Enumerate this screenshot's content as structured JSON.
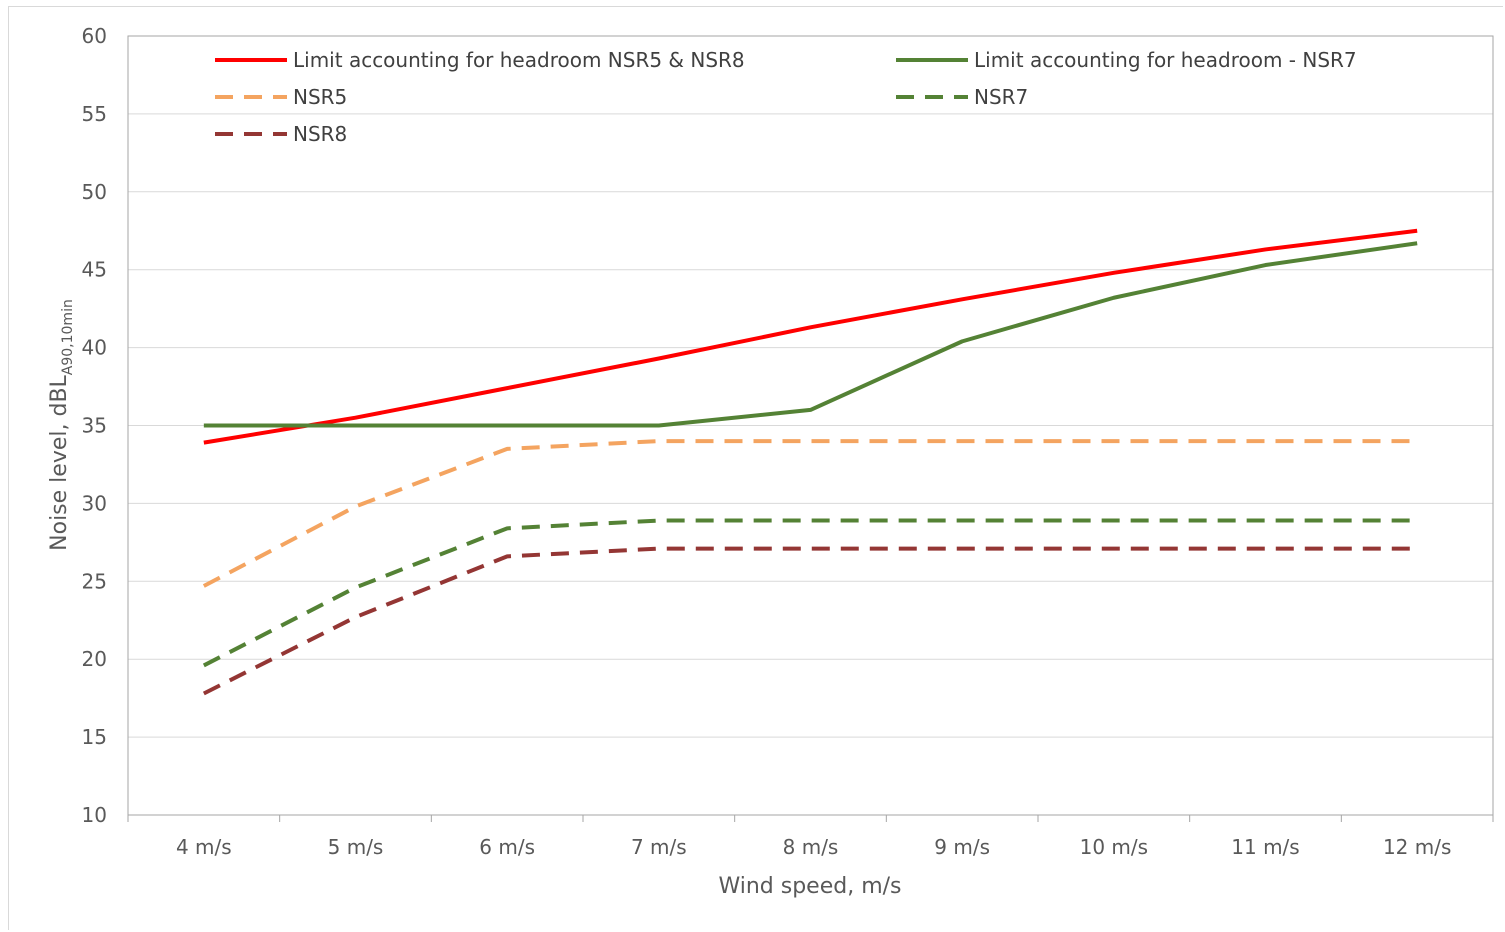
{
  "chart_data": {
    "type": "line",
    "title": "",
    "xlabel": "Wind speed, m/s",
    "ylabel": "Noise level, dBL",
    "ylabel_subscript": "A90,10min",
    "categories": [
      "4 m/s",
      "5 m/s",
      "6 m/s",
      "7 m/s",
      "8 m/s",
      "9 m/s",
      "10 m/s",
      "11 m/s",
      "12 m/s"
    ],
    "ylim": [
      10,
      60
    ],
    "yticks": [
      "10",
      "15",
      "20",
      "25",
      "30",
      "35",
      "40",
      "45",
      "50",
      "55",
      "60"
    ],
    "grid": true,
    "legend_position": "top",
    "series": [
      {
        "name": "Limit accounting for headroom NSR5 & NSR8",
        "color": "#ff0000",
        "dash": "solid",
        "values": [
          33.9,
          35.5,
          37.4,
          39.3,
          41.3,
          43.1,
          44.8,
          46.3,
          47.5
        ]
      },
      {
        "name": "Limit accounting for headroom - NSR7",
        "color": "#548235",
        "dash": "solid",
        "values": [
          35.0,
          35.0,
          35.0,
          35.0,
          36.0,
          40.4,
          43.2,
          45.3,
          46.7
        ]
      },
      {
        "name": "NSR5",
        "color": "#f4a460",
        "dash": "dashed",
        "values": [
          24.7,
          29.8,
          33.5,
          34.0,
          34.0,
          34.0,
          34.0,
          34.0,
          34.0
        ]
      },
      {
        "name": "NSR7",
        "color": "#548235",
        "dash": "dashed",
        "values": [
          19.6,
          24.6,
          28.4,
          28.9,
          28.9,
          28.9,
          28.9,
          28.9,
          28.9
        ]
      },
      {
        "name": "NSR8",
        "color": "#943634",
        "dash": "dashed",
        "values": [
          17.8,
          22.7,
          26.6,
          27.1,
          27.1,
          27.1,
          27.1,
          27.1,
          27.1
        ]
      }
    ]
  }
}
